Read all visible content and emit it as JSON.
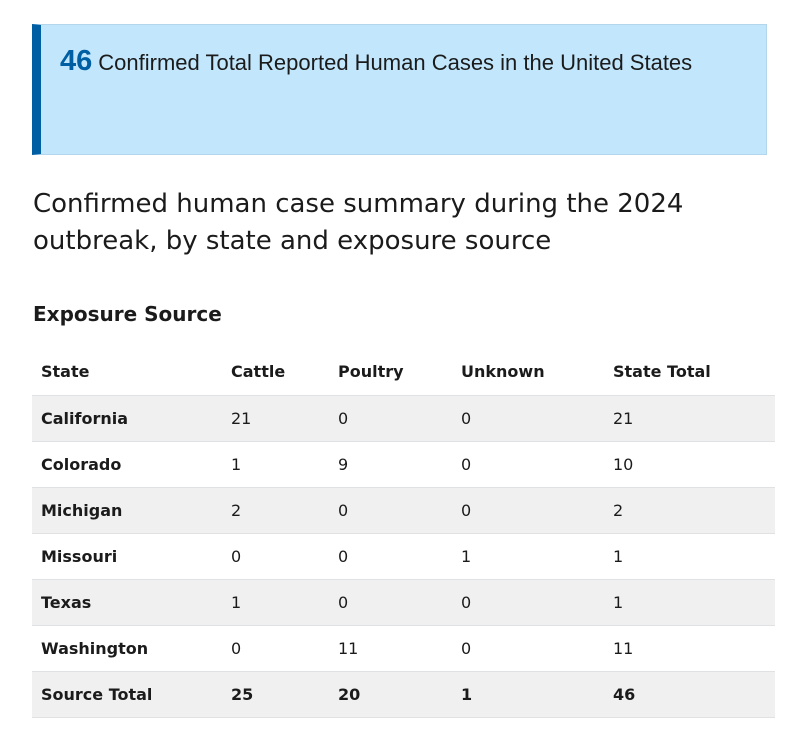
{
  "callout": {
    "count": "46",
    "text": "Confirmed Total Reported Human Cases in the United States"
  },
  "summary_title": "Confirmed human case summary during the 2024 outbreak, by state and exposure source",
  "exposure_heading": "Exposure Source",
  "table": {
    "headers": [
      "State",
      "Cattle",
      "Poultry",
      "Unknown",
      "State Total"
    ],
    "rows": [
      [
        "California",
        "21",
        "0",
        "0",
        "21"
      ],
      [
        "Colorado",
        "1",
        "9",
        "0",
        "10"
      ],
      [
        "Michigan",
        "2",
        "0",
        "0",
        "2"
      ],
      [
        "Missouri",
        "0",
        "0",
        "1",
        "1"
      ],
      [
        "Texas",
        "1",
        "0",
        "0",
        "1"
      ],
      [
        "Washington",
        "0",
        "11",
        "0",
        "11"
      ]
    ],
    "footer": [
      "Source Total",
      "25",
      "20",
      "1",
      "46"
    ]
  },
  "colors": {
    "accent": "#005ea2",
    "callout_background": "#c2e7fd",
    "stripe_background": "#f0f0f0"
  }
}
